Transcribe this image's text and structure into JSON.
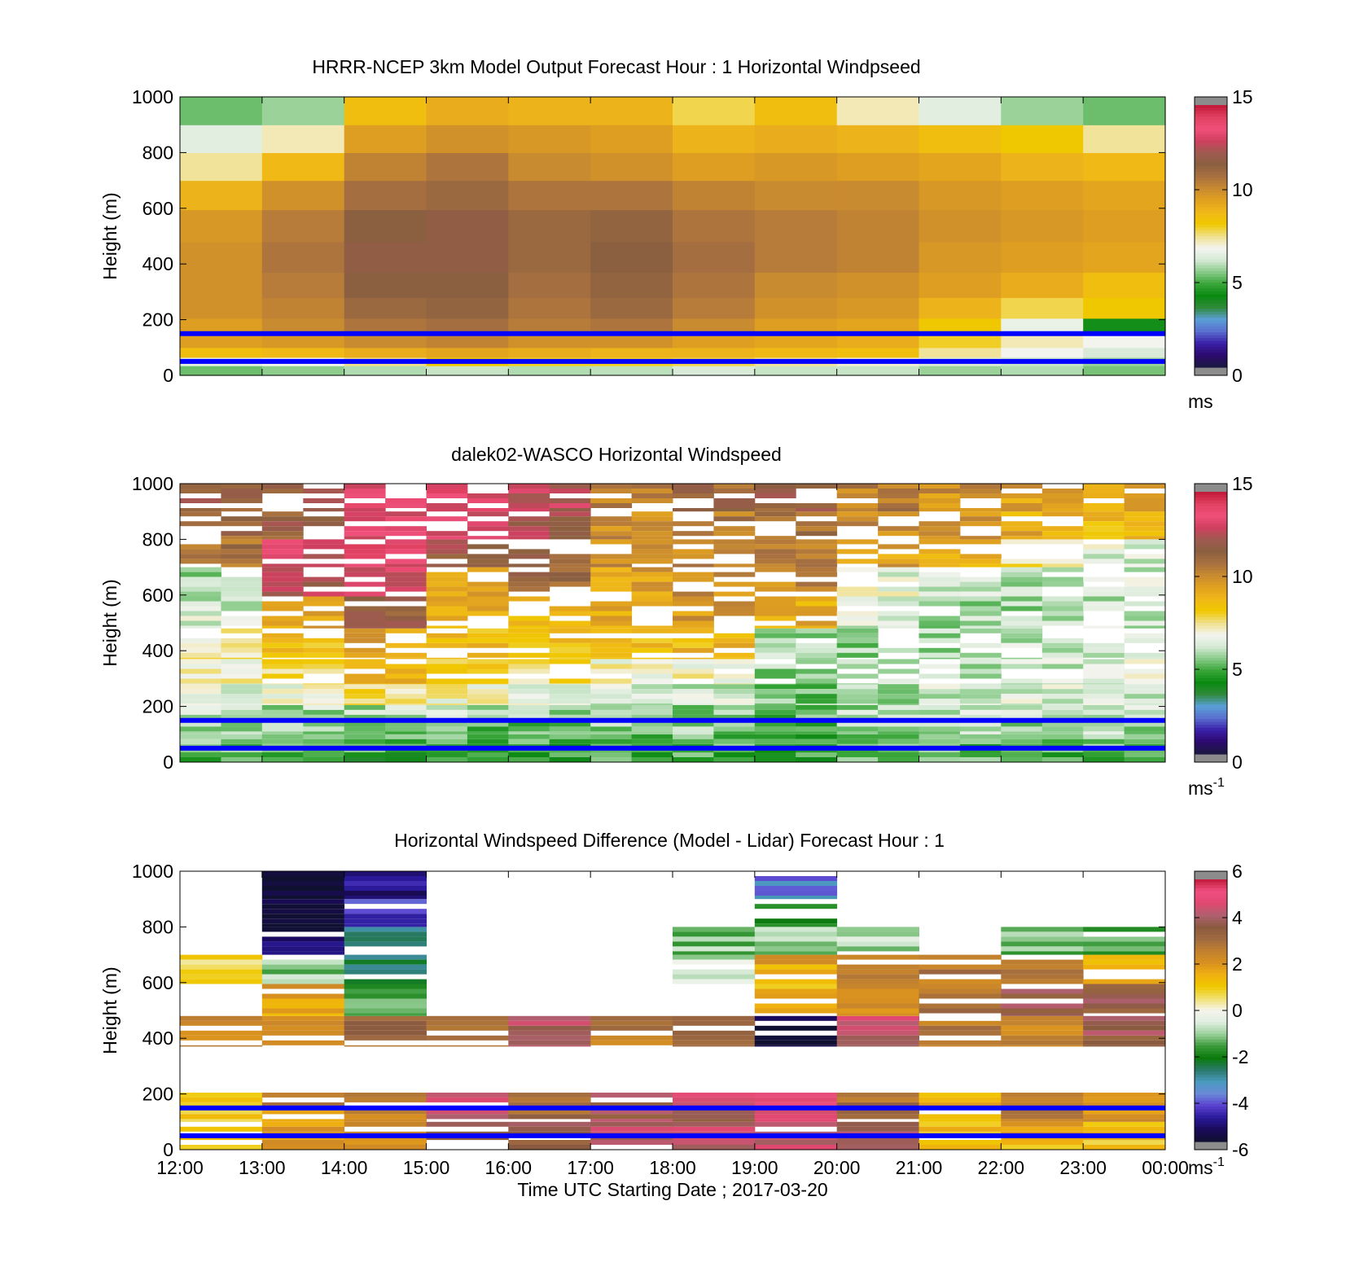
{
  "colormaps": {
    "speed": [
      "#1a1a40",
      "#2d0a6e",
      "#3a1fa8",
      "#5a6fd0",
      "#5a9fd8",
      "#2f8a3a",
      "#0b8a12",
      "#3aa63a",
      "#8acb8a",
      "#d6ead6",
      "#f4f4ee",
      "#f0e08a",
      "#f0c800",
      "#f0b818",
      "#e0a020",
      "#c88a30",
      "#a87040",
      "#8a6040",
      "#a05a50",
      "#d04060",
      "#f0507a",
      "#e04060",
      "#c01838"
    ],
    "diff": [
      "#101030",
      "#1a0a5a",
      "#2a1a9a",
      "#5a40d0",
      "#6a8ad8",
      "#4a9ac0",
      "#2a7a6a",
      "#0a7a0a",
      "#3a9a3a",
      "#9ad09a",
      "#e0eee0",
      "#f4f4ec",
      "#f0e070",
      "#f0c800",
      "#f0b010",
      "#d89020",
      "#c08030",
      "#a06a40",
      "#8a5a40",
      "#b06070",
      "#e04870",
      "#f05080",
      "#c01838"
    ]
  },
  "colorbar_style": {
    "outer_ends": "#8c8c8c"
  },
  "overlay_lines": {
    "color": "#0000ff",
    "heights_m": [
      50,
      150
    ]
  },
  "x_axis": {
    "ticks": [
      "12:00",
      "13:00",
      "14:00",
      "15:00",
      "16:00",
      "17:00",
      "18:00",
      "19:00",
      "20:00",
      "21:00",
      "22:00",
      "23:00",
      "00:00"
    ],
    "xlabel": "Time UTC  Starting Date ; 2017-03-20"
  },
  "panels": [
    {
      "title": "HRRR-NCEP 3km Model Output   Forecast Hour : 1 Horizontal Windpseed",
      "ylabel": "Height (m)",
      "yticks": [
        "0",
        "200",
        "400",
        "600",
        "800",
        "1000"
      ],
      "cbar_ticks": [
        "0",
        "5",
        "10",
        "15"
      ],
      "cbar_unit": "ms",
      "cbar_exp": ""
    },
    {
      "title": "dalek02-WASCO  Horizontal Windspeed",
      "ylabel": "Height (m)",
      "yticks": [
        "0",
        "200",
        "400",
        "600",
        "800",
        "1000"
      ],
      "cbar_ticks": [
        "0",
        "5",
        "10",
        "15"
      ],
      "cbar_unit": "ms",
      "cbar_exp": "-1"
    },
    {
      "title": "Horizontal Windspeed Difference (Model - Lidar) Forecast Hour : 1",
      "ylabel": "Height (m)",
      "yticks": [
        "0",
        "200",
        "400",
        "600",
        "800",
        "1000"
      ],
      "cbar_ticks": [
        "-6",
        "-4",
        "-2",
        "0",
        "2",
        "4",
        "6"
      ],
      "cbar_unit": "ms",
      "cbar_exp": "-1"
    }
  ],
  "chart_data": [
    {
      "type": "heatmap",
      "title": "HRRR-NCEP 3km Model Output   Forecast Hour : 1 Horizontal Windpseed",
      "ylabel": "Height (m)",
      "ylim": [
        0,
        1000
      ],
      "x_hours_utc": [
        "12:00",
        "13:00",
        "14:00",
        "15:00",
        "16:00",
        "17:00",
        "18:00",
        "19:00",
        "20:00",
        "21:00",
        "22:00",
        "23:00"
      ],
      "heights_m": [
        20,
        50,
        80,
        120,
        170,
        240,
        320,
        420,
        540,
        650,
        750,
        850,
        950
      ],
      "windspeed_ms": [
        [
          5.2,
          5.5,
          5.8,
          6.0,
          5.8,
          5.9,
          6.2,
          6.0,
          6.0,
          5.6,
          5.8,
          5.3
        ],
        [
          6.5,
          6.8,
          7.5,
          8.2,
          8.0,
          8.0,
          7.8,
          7.4,
          7.0,
          6.2,
          6.0,
          5.6
        ],
        [
          8.6,
          8.8,
          9.2,
          9.4,
          9.2,
          9.0,
          9.0,
          8.8,
          8.6,
          7.4,
          6.8,
          6.2
        ],
        [
          9.6,
          9.8,
          10.2,
          10.4,
          10.0,
          10.0,
          9.6,
          9.4,
          9.2,
          8.0,
          7.2,
          6.8
        ],
        [
          9.6,
          10.2,
          10.8,
          11.0,
          10.6,
          10.8,
          10.2,
          9.6,
          9.4,
          8.2,
          6.6,
          4.2
        ],
        [
          10.0,
          10.4,
          11.2,
          11.4,
          10.8,
          11.2,
          10.6,
          10.0,
          9.8,
          9.0,
          7.8,
          8.2
        ],
        [
          10.0,
          10.6,
          11.6,
          11.6,
          11.0,
          11.4,
          10.8,
          10.2,
          10.0,
          9.6,
          9.2,
          8.6
        ],
        [
          10.0,
          10.8,
          11.8,
          11.8,
          11.2,
          11.6,
          11.0,
          10.6,
          10.4,
          9.8,
          9.6,
          9.4
        ],
        [
          9.8,
          10.6,
          11.6,
          11.8,
          11.2,
          11.4,
          10.8,
          10.6,
          10.4,
          10.0,
          9.8,
          9.6
        ],
        [
          9.0,
          10.0,
          11.0,
          11.2,
          10.8,
          10.8,
          10.4,
          10.2,
          10.2,
          9.8,
          9.6,
          9.4
        ],
        [
          7.4,
          8.8,
          10.4,
          10.8,
          10.2,
          10.0,
          9.6,
          9.8,
          9.6,
          9.4,
          9.0,
          8.8
        ],
        [
          6.4,
          7.2,
          9.6,
          10.0,
          9.8,
          9.6,
          9.0,
          9.2,
          9.0,
          8.6,
          8.2,
          7.4
        ],
        [
          5.2,
          5.6,
          8.6,
          9.2,
          9.0,
          9.0,
          7.8,
          8.6,
          7.2,
          6.4,
          5.6,
          5.2
        ]
      ]
    },
    {
      "type": "heatmap",
      "title": "dalek02-WASCO  Horizontal Windspeed",
      "ylabel": "Height (m)",
      "ylim": [
        0,
        1000
      ],
      "x_hours_utc": [
        "12:00",
        "13:00",
        "14:00",
        "15:00",
        "16:00",
        "17:00",
        "18:00",
        "19:00",
        "20:00",
        "21:00",
        "22:00",
        "23:00"
      ],
      "heights_m": [
        20,
        50,
        80,
        120,
        170,
        240,
        320,
        420,
        540,
        650,
        750,
        850,
        950
      ],
      "windspeed_ms": [
        [
          4.6,
          5.0,
          4.4,
          4.8,
          4.6,
          4.8,
          4.8,
          4.6,
          5.0,
          5.0,
          5.0,
          5.0
        ],
        [
          5.2,
          5.2,
          5.0,
          4.8,
          4.8,
          5.0,
          5.0,
          4.6,
          5.2,
          5.0,
          5.2,
          5.4
        ],
        [
          5.4,
          5.4,
          5.2,
          5.0,
          5.0,
          5.2,
          5.2,
          4.8,
          5.4,
          5.6,
          5.4,
          5.6
        ],
        [
          5.6,
          5.4,
          5.4,
          5.2,
          5.2,
          5.4,
          5.4,
          5.0,
          5.6,
          5.8,
          5.6,
          5.8
        ],
        [
          6.0,
          5.8,
          5.8,
          5.8,
          5.8,
          5.6,
          5.6,
          5.0,
          5.8,
          6.0,
          6.0,
          6.0
        ],
        [
          6.4,
          6.6,
          7.6,
          7.0,
          6.8,
          6.2,
          6.2,
          5.2,
          5.8,
          6.2,
          6.2,
          6.2
        ],
        [
          7.0,
          7.8,
          8.8,
          8.0,
          7.6,
          7.0,
          7.0,
          5.6,
          5.8,
          6.0,
          6.2,
          6.4
        ],
        [
          7.4,
          8.6,
          9.4,
          8.6,
          8.4,
          8.6,
          8.8,
          5.8,
          5.6,
          5.8,
          6.0,
          6.2
        ],
        [
          6.2,
          9.4,
          11.8,
          9.0,
          8.6,
          9.2,
          9.8,
          9.2,
          6.2,
          5.8,
          5.8,
          6.0
        ],
        [
          5.8,
          12.6,
          13.4,
          9.4,
          11.4,
          9.6,
          10.2,
          10.2,
          6.6,
          6.0,
          6.0,
          6.2
        ],
        [
          10.8,
          13.0,
          13.6,
          12.0,
          11.6,
          10.0,
          10.4,
          10.4,
          9.6,
          9.0,
          7.6,
          6.4
        ],
        [
          11.2,
          11.6,
          13.4,
          13.2,
          12.2,
          10.2,
          10.6,
          10.8,
          10.2,
          9.8,
          9.2,
          8.6
        ],
        [
          11.6,
          11.8,
          13.2,
          13.6,
          12.6,
          10.4,
          11.2,
          11.6,
          10.6,
          10.0,
          9.6,
          9.4
        ]
      ]
    },
    {
      "type": "heatmap",
      "title": "Horizontal Windspeed Difference (Model - Lidar) Forecast Hour : 1",
      "ylabel": "Height (m)",
      "ylim": [
        0,
        1000
      ],
      "x_hours_utc": [
        "12:00",
        "13:00",
        "14:00",
        "15:00",
        "16:00",
        "17:00",
        "18:00",
        "19:00",
        "20:00",
        "21:00",
        "22:00",
        "23:00"
      ],
      "heights_m": [
        20,
        50,
        80,
        120,
        170,
        240,
        320,
        420,
        540,
        650,
        750,
        850,
        950
      ],
      "diff_ms": [
        [
          1.4,
          1.8,
          2.0,
          3.6,
          3.4,
          4.2,
          4.4,
          4.6,
          3.8,
          1.6,
          1.4,
          1.2
        ],
        [
          1.8,
          2.0,
          2.4,
          4.0,
          3.6,
          4.2,
          4.6,
          4.8,
          4.0,
          1.4,
          1.6,
          1.2
        ],
        [
          1.6,
          2.2,
          2.6,
          4.4,
          3.8,
          4.4,
          4.4,
          4.4,
          3.4,
          1.2,
          2.0,
          1.6
        ],
        [
          1.2,
          1.8,
          2.4,
          4.2,
          3.2,
          4.0,
          4.2,
          5.0,
          3.2,
          1.4,
          2.6,
          2.0
        ],
        [
          1.4,
          3.0,
          2.4,
          4.4,
          3.4,
          4.0,
          4.6,
          5.6,
          3.0,
          1.8,
          2.8,
          2.2
        ],
        [
          null,
          null,
          null,
          null,
          null,
          null,
          null,
          null,
          null,
          null,
          null,
          null
        ],
        [
          null,
          null,
          null,
          null,
          null,
          null,
          null,
          null,
          null,
          null,
          null,
          null
        ],
        [
          2.6,
          2.8,
          3.2,
          3.0,
          4.2,
          2.8,
          3.0,
          -6.0,
          4.6,
          3.0,
          2.6,
          4.0
        ],
        [
          null,
          1.8,
          -1.6,
          null,
          null,
          null,
          null,
          1.4,
          2.0,
          3.0,
          4.0,
          3.8
        ],
        [
          0.8,
          -1.2,
          -2.8,
          null,
          null,
          null,
          -0.6,
          1.8,
          2.8,
          2.8,
          3.2,
          1.4
        ],
        [
          null,
          -5.4,
          -3.2,
          null,
          null,
          null,
          -1.2,
          -1.2,
          -0.8,
          null,
          -1.2,
          -1.6
        ],
        [
          null,
          -5.6,
          -4.4,
          null,
          null,
          null,
          null,
          -2.4,
          null,
          null,
          null,
          null
        ],
        [
          null,
          -5.8,
          -5.0,
          null,
          null,
          null,
          null,
          -3.8,
          null,
          null,
          null,
          null
        ]
      ]
    }
  ]
}
